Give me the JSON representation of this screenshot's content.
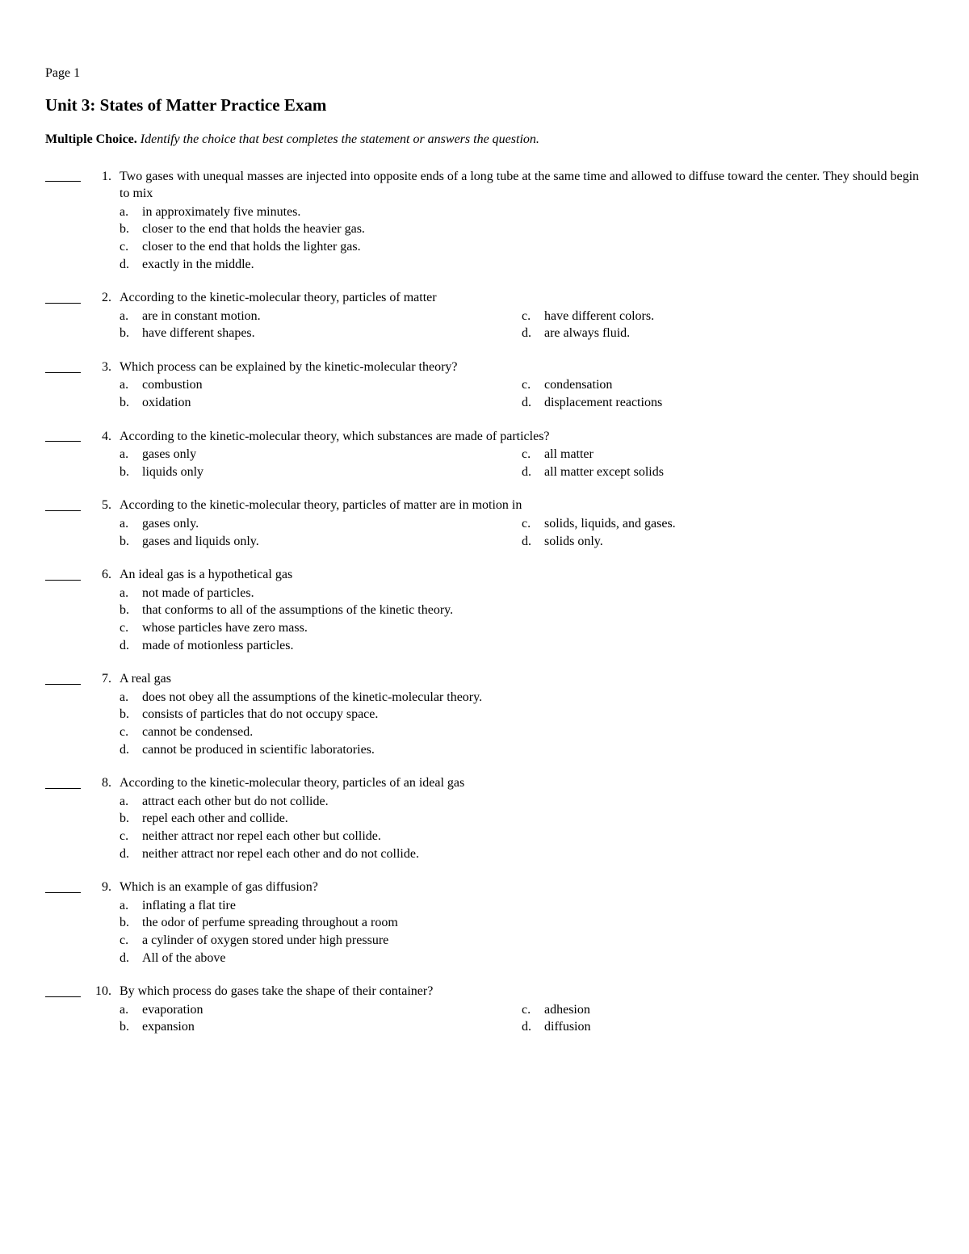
{
  "page_label": "Page 1",
  "title": "Unit 3: States of Matter Practice Exam",
  "instructions_bold": "Multiple Choice.",
  "instructions_italic": "Identify the choice that best completes the statement or answers the question.",
  "questions": [
    {
      "num": "1.",
      "stem": "Two gases with unequal masses are injected into opposite ends of a long tube at the same time and allowed to diffuse toward the center. They should begin to mix",
      "layout": "stack",
      "choices": {
        "a": "in approximately five minutes.",
        "b": "closer to the end that holds the heavier gas.",
        "c": "closer to the end that holds the lighter gas.",
        "d": "exactly in the middle."
      }
    },
    {
      "num": "2.",
      "stem": "According to the kinetic-molecular theory, particles of matter",
      "layout": "two",
      "choices": {
        "a": "are in constant motion.",
        "b": "have different shapes.",
        "c": "have different colors.",
        "d": "are always fluid."
      }
    },
    {
      "num": "3.",
      "stem": "Which process can be explained by the kinetic-molecular theory?",
      "layout": "two",
      "choices": {
        "a": "combustion",
        "b": "oxidation",
        "c": "condensation",
        "d": "displacement reactions"
      }
    },
    {
      "num": "4.",
      "stem": "According to the kinetic-molecular theory, which substances are made of particles?",
      "layout": "two",
      "choices": {
        "a": "gases only",
        "b": "liquids only",
        "c": "all matter",
        "d": "all matter except solids"
      }
    },
    {
      "num": "5.",
      "stem": "According to the kinetic-molecular theory, particles of matter are in motion in",
      "layout": "two",
      "choices": {
        "a": "gases only.",
        "b": "gases and liquids only.",
        "c": "solids, liquids, and gases.",
        "d": "solids only."
      }
    },
    {
      "num": "6.",
      "stem": "An ideal gas is a hypothetical gas",
      "layout": "stack",
      "choices": {
        "a": "not made of particles.",
        "b": "that conforms to all of the assumptions of the kinetic theory.",
        "c": "whose particles have zero mass.",
        "d": "made of motionless particles."
      }
    },
    {
      "num": "7.",
      "stem": "A real gas",
      "layout": "stack",
      "choices": {
        "a": "does not obey all the assumptions of the kinetic-molecular theory.",
        "b": "consists of particles that do not occupy space.",
        "c": "cannot be condensed.",
        "d": "cannot be produced in scientific laboratories."
      }
    },
    {
      "num": "8.",
      "stem": "According to the kinetic-molecular theory, particles of an ideal gas",
      "layout": "stack",
      "choices": {
        "a": "attract each other but do not collide.",
        "b": "repel each other and collide.",
        "c": "neither attract nor repel each other but collide.",
        "d": "neither attract nor repel each other and do not collide."
      }
    },
    {
      "num": "9.",
      "stem": "Which is an example of gas diffusion?",
      "layout": "stack",
      "choices": {
        "a": "inflating a flat tire",
        "b": "the odor of perfume spreading throughout a room",
        "c": "a cylinder of oxygen stored under high pressure",
        "d": "All of the above"
      }
    },
    {
      "num": "10.",
      "stem": "By which process do gases take the shape of their container?",
      "layout": "two",
      "choices": {
        "a": "evaporation",
        "b": "expansion",
        "c": "adhesion",
        "d": "diffusion"
      }
    }
  ]
}
